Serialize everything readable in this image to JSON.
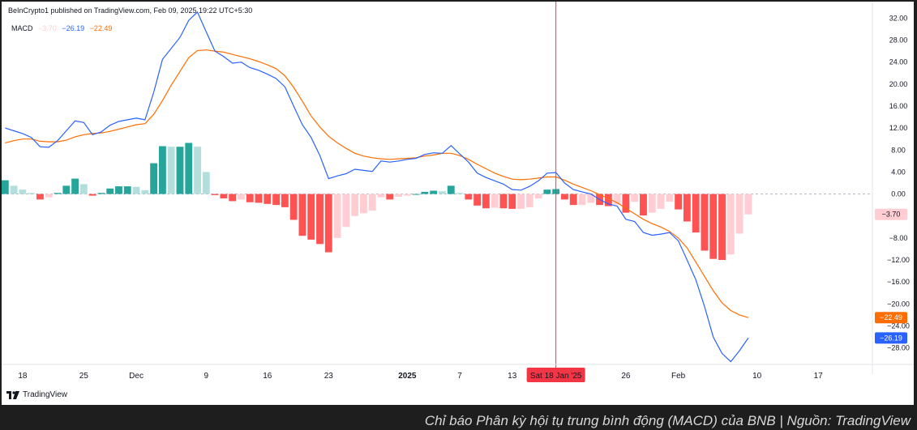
{
  "header": {
    "published": "BeInCrypto1 published on TradingView.com, Feb 09, 2025 19:22 UTC+5:30"
  },
  "legend": {
    "name": "MACD",
    "hist": "−3.70",
    "macd": "−26.19",
    "signal": "−22.49"
  },
  "brand": {
    "name": "TradingView"
  },
  "caption": "Chỉ báo Phân kỳ hội tụ trung bình động (MACD) của BNB | Nguồn: TradingView",
  "crosshair": {
    "date_label": "Sat 18 Jan '25"
  },
  "colors": {
    "macd": "#2962ff",
    "signal": "#ff6d00",
    "hist_pos_strong": "#26a69a",
    "hist_pos_weak": "#b2dfdb",
    "hist_neg_strong": "#ff5252",
    "hist_neg_weak": "#ffcdd2",
    "crosshair": "#f23645"
  },
  "chart_data": {
    "type": "line",
    "title": "",
    "ylabel": "",
    "xlabel": "",
    "ylim": [
      -31,
      35
    ],
    "y_ticks": [
      32,
      28,
      24,
      20,
      16,
      12,
      8,
      4,
      0,
      -4,
      -8,
      -12,
      -16,
      -20,
      -24,
      -28
    ],
    "y_tick_labels": [
      "32.00",
      "28.00",
      "24.00",
      "20.00",
      "16.00",
      "12.00",
      "8.00",
      "4.00",
      "0.00",
      "−4.00",
      "−8.00",
      "−12.00",
      "−16.00",
      "−20.00",
      "−24.00",
      "−28.00"
    ],
    "x_ticks": [
      {
        "label": "18",
        "day": 0
      },
      {
        "label": "25",
        "day": 7
      },
      {
        "label": "Dec",
        "day": 13
      },
      {
        "label": "9",
        "day": 21
      },
      {
        "label": "16",
        "day": 28
      },
      {
        "label": "23",
        "day": 35
      },
      {
        "label": "2025",
        "day": 44
      },
      {
        "label": "7",
        "day": 50
      },
      {
        "label": "13",
        "day": 56
      },
      {
        "label": "26",
        "day": 69
      },
      {
        "label": "Feb",
        "day": 75
      },
      {
        "label": "10",
        "day": 84
      },
      {
        "label": "17",
        "day": 91
      }
    ],
    "day_range": [
      -2.4,
      97.2
    ],
    "last_values": {
      "hist": "-3.70",
      "signal": "-22.49",
      "macd": "-26.19"
    },
    "crosshair_day": 61,
    "series": [
      {
        "name": "MACD",
        "start_day": -2,
        "values": [
          12.0,
          11.5,
          11.0,
          10.3,
          8.6,
          8.5,
          9.7,
          11.5,
          13.3,
          13.0,
          10.8,
          11.3,
          12.5,
          13.2,
          13.5,
          13.8,
          13.5,
          18.5,
          24.5,
          26.5,
          28.5,
          31.6,
          33.1,
          29.5,
          26.0,
          25.0,
          23.8,
          24.0,
          23.0,
          22.5,
          21.8,
          21.0,
          19.5,
          16.0,
          12.6,
          10.3,
          7.0,
          2.8,
          3.3,
          3.7,
          4.5,
          4.3,
          4.1,
          6.0,
          5.8,
          6.0,
          6.3,
          6.5,
          7.2,
          7.5,
          7.4,
          8.8,
          7.3,
          5.8,
          3.8,
          3.0,
          2.4,
          1.8,
          0.8,
          0.7,
          1.4,
          2.4,
          3.8,
          3.9,
          2.0,
          0.8,
          0.4,
          0.0,
          -1.0,
          -1.8,
          -2.2,
          -4.6,
          -5.0,
          -7.0,
          -7.5,
          -7.3,
          -7.0,
          -8.5,
          -12.0,
          -15.6,
          -20.5,
          -26.0,
          -29.0,
          -30.5,
          -28.5,
          -26.19
        ]
      },
      {
        "name": "Signal",
        "start_day": -2,
        "values": [
          9.3,
          9.7,
          10.0,
          10.0,
          9.6,
          9.5,
          9.5,
          9.8,
          10.4,
          10.8,
          11.0,
          11.1,
          11.4,
          11.8,
          12.2,
          12.6,
          12.8,
          14.5,
          17.0,
          19.8,
          22.3,
          24.8,
          26.1,
          26.2,
          26.0,
          25.8,
          25.4,
          25.0,
          24.6,
          24.1,
          23.5,
          22.8,
          21.5,
          19.4,
          16.9,
          14.2,
          12.2,
          10.5,
          9.3,
          8.3,
          7.4,
          6.9,
          6.6,
          6.4,
          6.3,
          6.4,
          6.5,
          6.6,
          6.9,
          7.1,
          7.4,
          7.4,
          7.0,
          6.3,
          5.4,
          4.6,
          3.8,
          3.2,
          2.7,
          2.6,
          2.7,
          2.9,
          3.1,
          3.1,
          2.5,
          1.8,
          1.2,
          0.6,
          -0.1,
          -0.8,
          -1.6,
          -2.6,
          -3.6,
          -4.6,
          -5.4,
          -6.0,
          -6.8,
          -8.0,
          -9.8,
          -12.4,
          -15.0,
          -17.6,
          -19.8,
          -21.2,
          -22.0,
          -22.49
        ]
      },
      {
        "name": "Histogram",
        "start_day": -2,
        "values": [
          2.5,
          1.5,
          0.8,
          0.2,
          -1.0,
          -0.6,
          0.2,
          1.5,
          2.8,
          1.8,
          -0.3,
          0.2,
          1.0,
          1.4,
          1.4,
          1.3,
          0.7,
          5.6,
          8.7,
          8.6,
          8.6,
          9.3,
          8.6,
          4.0,
          -0.2,
          -0.8,
          -1.3,
          -1.0,
          -1.5,
          -1.6,
          -1.8,
          -2.0,
          -2.4,
          -4.7,
          -7.6,
          -8.3,
          -9.1,
          -10.6,
          -8.0,
          -6.0,
          -4.0,
          -3.5,
          -3.0,
          -0.6,
          -1.0,
          -0.5,
          -0.3,
          0.0,
          0.4,
          0.6,
          0.5,
          1.5,
          0.2,
          -1.0,
          -2.1,
          -2.6,
          -2.5,
          -2.6,
          -2.7,
          -2.7,
          -2.4,
          -0.8,
          0.8,
          0.9,
          -1.0,
          -2.0,
          -2.0,
          -1.6,
          -2.0,
          -2.2,
          -1.9,
          -3.4,
          -1.4,
          -3.9,
          -3.4,
          -2.7,
          -1.4,
          -2.8,
          -5.0,
          -7.0,
          -10.3,
          -11.8,
          -12.0,
          -11.0,
          -7.2,
          -3.7
        ]
      }
    ]
  }
}
